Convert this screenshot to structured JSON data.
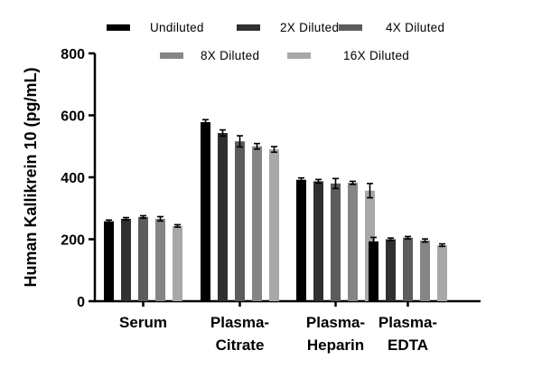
{
  "chart_data": {
    "type": "bar",
    "title": "",
    "xlabel": "",
    "ylabel": "Human Kallikrein 10 (pg/mL)",
    "ylim": [
      0,
      800
    ],
    "yticks": [
      0,
      200,
      400,
      600,
      800
    ],
    "grid": false,
    "legend_position": "top",
    "categories": [
      {
        "line1": "Serum",
        "line2": ""
      },
      {
        "line1": "Plasma-",
        "line2": "Citrate"
      },
      {
        "line1": "Plasma-",
        "line2": "Heparin"
      },
      {
        "line1": "Plasma-",
        "line2": "EDTA"
      }
    ],
    "series": [
      {
        "name": "Undiluted",
        "color": "#000000",
        "values": [
          258,
          578,
          392,
          193
        ],
        "errors": [
          4,
          8,
          6,
          13
        ]
      },
      {
        "name": "2X Diluted",
        "color": "#303030",
        "values": [
          266,
          543,
          387,
          200
        ],
        "errors": [
          4,
          10,
          6,
          4
        ]
      },
      {
        "name": "4X Diluted",
        "color": "#5c5c5c",
        "values": [
          272,
          516,
          380,
          205
        ],
        "errors": [
          4,
          18,
          16,
          4
        ]
      },
      {
        "name": "8X Diluted",
        "color": "#858585",
        "values": [
          266,
          500,
          382,
          196
        ],
        "errors": [
          7,
          9,
          5,
          5
        ]
      },
      {
        "name": "16X Diluted",
        "color": "#a8a8a8",
        "values": [
          243,
          490,
          357,
          181
        ],
        "errors": [
          4,
          9,
          23,
          4
        ]
      }
    ]
  }
}
